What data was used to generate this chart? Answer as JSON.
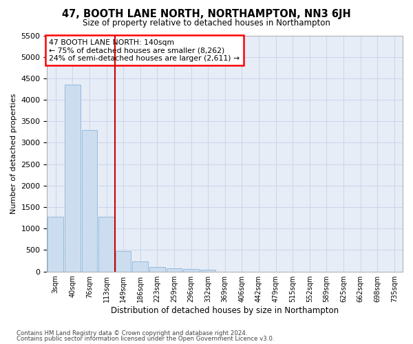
{
  "title": "47, BOOTH LANE NORTH, NORTHAMPTON, NN3 6JH",
  "subtitle": "Size of property relative to detached houses in Northampton",
  "xlabel": "Distribution of detached houses by size in Northampton",
  "ylabel": "Number of detached properties",
  "vline_position": 3.5,
  "annotation_line1": "47 BOOTH LANE NORTH: 140sqm",
  "annotation_line2": "← 75% of detached houses are smaller (8,262)",
  "annotation_line3": "24% of semi-detached houses are larger (2,611) →",
  "footer1": "Contains HM Land Registry data © Crown copyright and database right 2024.",
  "footer2": "Contains public sector information licensed under the Open Government Licence v3.0.",
  "bar_color": "#ccddf0",
  "bar_edge_color": "#8ab4d8",
  "grid_color": "#ccd5e8",
  "background_color": "#e6edf7",
  "vline_color": "#cc0000",
  "categories": [
    "3sqm",
    "40sqm",
    "76sqm",
    "113sqm",
    "149sqm",
    "186sqm",
    "223sqm",
    "259sqm",
    "296sqm",
    "332sqm",
    "369sqm",
    "406sqm",
    "442sqm",
    "479sqm",
    "515sqm",
    "552sqm",
    "589sqm",
    "625sqm",
    "662sqm",
    "698sqm",
    "735sqm"
  ],
  "values": [
    1270,
    4350,
    3300,
    1270,
    480,
    230,
    105,
    80,
    60,
    40,
    0,
    0,
    0,
    0,
    0,
    0,
    0,
    0,
    0,
    0,
    0
  ],
  "ylim": [
    0,
    5500
  ],
  "yticks": [
    0,
    500,
    1000,
    1500,
    2000,
    2500,
    3000,
    3500,
    4000,
    4500,
    5000,
    5500
  ]
}
